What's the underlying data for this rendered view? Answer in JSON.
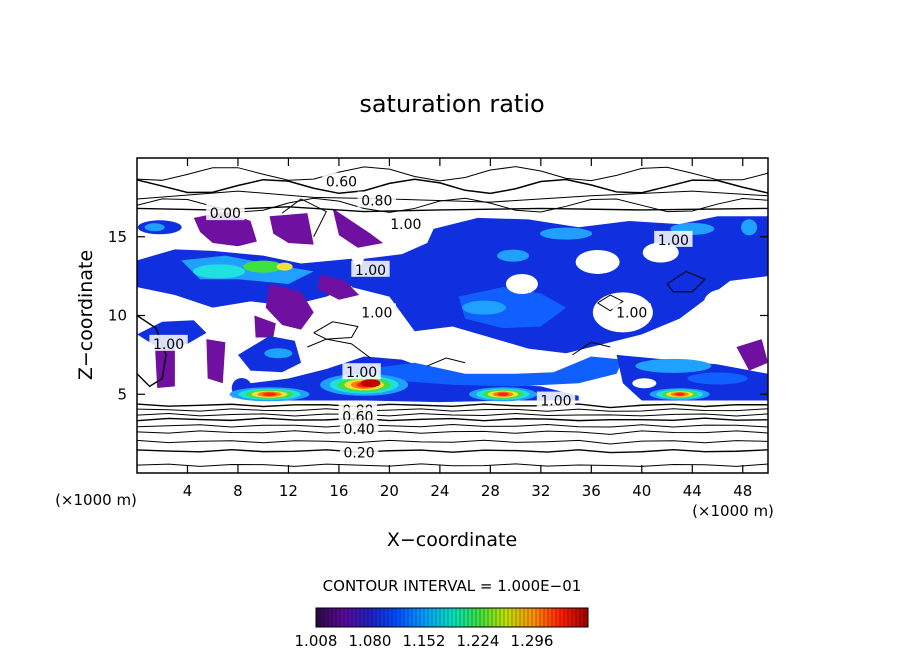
{
  "chart_data": {
    "type": "heatmap",
    "title": "saturation ratio",
    "xlabel": "X−coordinate",
    "ylabel": "Z−coordinate",
    "x_unit_left": "(×1000 m)",
    "x_unit_right": "(×1000 m)",
    "xlim": [
      0,
      50
    ],
    "ylim": [
      0,
      20
    ],
    "xticks": [
      4,
      8,
      12,
      16,
      20,
      24,
      28,
      32,
      36,
      40,
      44,
      48
    ],
    "yticks": [
      5,
      10,
      15
    ],
    "contour_interval_text": "CONTOUR INTERVAL = 1.000E−01",
    "contour_labels": [
      {
        "text": "0.60",
        "x": 16.2,
        "y": 18.5
      },
      {
        "text": "0.80",
        "x": 19.0,
        "y": 17.3
      },
      {
        "text": "0.00",
        "x": 7.0,
        "y": 16.5
      },
      {
        "text": "1.00",
        "x": 21.3,
        "y": 15.8
      },
      {
        "text": "1.00",
        "x": 42.5,
        "y": 14.8
      },
      {
        "text": "1.00",
        "x": 18.5,
        "y": 12.9
      },
      {
        "text": "1.00",
        "x": 19.0,
        "y": 10.2
      },
      {
        "text": "1.00",
        "x": 39.2,
        "y": 10.2
      },
      {
        "text": "1.00",
        "x": 2.5,
        "y": 8.2
      },
      {
        "text": "1.00",
        "x": 17.8,
        "y": 6.4
      },
      {
        "text": "1.00",
        "x": 33.2,
        "y": 4.6
      },
      {
        "text": "0.80",
        "x": 17.5,
        "y": 4.0
      },
      {
        "text": "0.60",
        "x": 17.5,
        "y": 3.6
      },
      {
        "text": "0.40",
        "x": 17.6,
        "y": 2.8
      },
      {
        "text": "0.20",
        "x": 17.6,
        "y": 1.3
      }
    ],
    "colorbar": {
      "ticks": [
        "1.008",
        "1.080",
        "1.152",
        "1.224",
        "1.296"
      ],
      "colors": [
        "#2a0a40",
        "#5a0a9a",
        "#2020c0",
        "#0050ff",
        "#00a0ff",
        "#00e0c0",
        "#40e040",
        "#c0e000",
        "#ff9000",
        "#ff2000",
        "#a00000"
      ]
    },
    "fill_colors": {
      "purple": "#7010a0",
      "blue": "#1030e0",
      "mid_blue": "#1060ff",
      "light_blue": "#20a0ff",
      "cyan": "#20e0e0",
      "green": "#40e040",
      "yellow": "#f0e040",
      "orange": "#ff8000",
      "red": "#ff2020"
    }
  }
}
